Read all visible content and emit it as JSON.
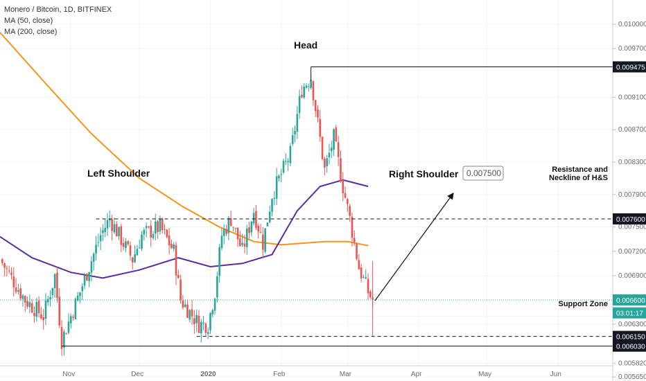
{
  "legend": {
    "symbol": "Monero / Bitcoin, 1D, BITFINEX",
    "ma50": "MA (50, close)",
    "ma200": "MA (200, close)"
  },
  "colors": {
    "up": "#26a69a",
    "down": "#ef5350",
    "ma50": "#5b2a9e",
    "ma200": "#f7931a",
    "current": "#26a69a"
  },
  "price_axis": {
    "ticks": [
      "0.010000",
      "0.009700",
      "0.009100",
      "0.008700",
      "0.008300",
      "0.007900",
      "0.007500",
      "0.007200",
      "0.006900",
      "0.006400",
      "0.006300",
      "0.005820",
      "0.005650"
    ],
    "tick_values": [
      0.01,
      0.0097,
      0.0091,
      0.0087,
      0.0083,
      0.0079,
      0.0075,
      0.0072,
      0.0069,
      0.0064,
      0.0063,
      0.00582,
      0.00565
    ],
    "markers": [
      {
        "label": "0.009475",
        "value": 0.009475,
        "style": "dark"
      },
      {
        "label": "0.007600",
        "value": 0.0076,
        "style": "dark"
      },
      {
        "label": "0.006600",
        "value": 0.0066,
        "style": "current"
      },
      {
        "label": "03:01:17",
        "value": 0.00644,
        "style": "current"
      },
      {
        "label": "0.006150",
        "value": 0.00615,
        "style": "dark"
      },
      {
        "label": "0.006030",
        "value": 0.00603,
        "style": "dark"
      }
    ]
  },
  "time_axis": {
    "labels": [
      "Nov",
      "Dec",
      "2020",
      "Feb",
      "Mar",
      "Apr",
      "May",
      "Jun"
    ]
  },
  "annotations": {
    "head": "Head",
    "left_shoulder": "Left Shoulder",
    "right_shoulder": "Right Shoulder",
    "right_shoulder_target": "0.007500",
    "resistance_line1": "Resistance and",
    "resistance_line2": "Neckline of H&S",
    "support": "Support Zone"
  },
  "chart_data": {
    "type": "candlestick",
    "title": "Monero / Bitcoin, 1D, BITFINEX",
    "ylim": [
      0.0056,
      0.0103
    ],
    "levels": {
      "head": 0.009475,
      "neckline": 0.0076,
      "support": 0.00615,
      "low": 0.00603,
      "current": 0.0066,
      "projection": 0.0075
    },
    "close_path": [
      [
        "2019-10-01",
        0.0071
      ],
      [
        "2019-10-12",
        0.0066
      ],
      [
        "2019-10-20",
        0.0064
      ],
      [
        "2019-10-25",
        0.0069
      ],
      [
        "2019-10-28",
        0.0061
      ],
      [
        "2019-11-05",
        0.0067
      ],
      [
        "2019-11-14",
        0.0074
      ],
      [
        "2019-11-18",
        0.0076
      ],
      [
        "2019-11-28",
        0.0071
      ],
      [
        "2019-12-02",
        0.0074
      ],
      [
        "2019-12-10",
        0.0075
      ],
      [
        "2019-12-16",
        0.0072
      ],
      [
        "2019-12-19",
        0.0066
      ],
      [
        "2019-12-27",
        0.0063
      ],
      [
        "2019-12-31",
        0.0063
      ],
      [
        "2020-01-03",
        0.0067
      ],
      [
        "2020-01-06",
        0.0074
      ],
      [
        "2020-01-10",
        0.0076
      ],
      [
        "2020-01-15",
        0.0072
      ],
      [
        "2020-01-20",
        0.0077
      ],
      [
        "2020-01-24",
        0.0073
      ],
      [
        "2020-01-28",
        0.0079
      ],
      [
        "2020-02-05",
        0.0084
      ],
      [
        "2020-02-10",
        0.0092
      ],
      [
        "2020-02-14",
        0.00935
      ],
      [
        "2020-02-20",
        0.0082
      ],
      [
        "2020-02-24",
        0.0086
      ],
      [
        "2020-02-28",
        0.008
      ],
      [
        "2020-03-02",
        0.0076
      ],
      [
        "2020-03-06",
        0.007
      ],
      [
        "2020-03-10",
        0.0067
      ],
      [
        "2020-03-12",
        0.0066
      ]
    ],
    "ma50_path": [
      [
        "2019-10-01",
        0.00738
      ],
      [
        "2019-10-15",
        0.00712
      ],
      [
        "2019-11-01",
        0.00694
      ],
      [
        "2019-11-15",
        0.00687
      ],
      [
        "2019-12-01",
        0.00697
      ],
      [
        "2019-12-18",
        0.00712
      ],
      [
        "2020-01-01",
        0.00701
      ],
      [
        "2020-01-15",
        0.00705
      ],
      [
        "2020-01-28",
        0.00716
      ],
      [
        "2020-02-08",
        0.0077
      ],
      [
        "2020-02-18",
        0.008
      ],
      [
        "2020-02-28",
        0.00808
      ],
      [
        "2020-03-10",
        0.008
      ]
    ],
    "ma200_path": [
      [
        "2019-10-01",
        0.0099
      ],
      [
        "2019-10-20",
        0.0093
      ],
      [
        "2019-11-10",
        0.00865
      ],
      [
        "2019-12-01",
        0.0081
      ],
      [
        "2019-12-20",
        0.00775
      ],
      [
        "2020-01-05",
        0.0075
      ],
      [
        "2020-01-20",
        0.00732
      ],
      [
        "2020-02-01",
        0.00728
      ],
      [
        "2020-02-20",
        0.00732
      ],
      [
        "2020-03-01",
        0.00732
      ],
      [
        "2020-03-10",
        0.00727
      ]
    ]
  }
}
